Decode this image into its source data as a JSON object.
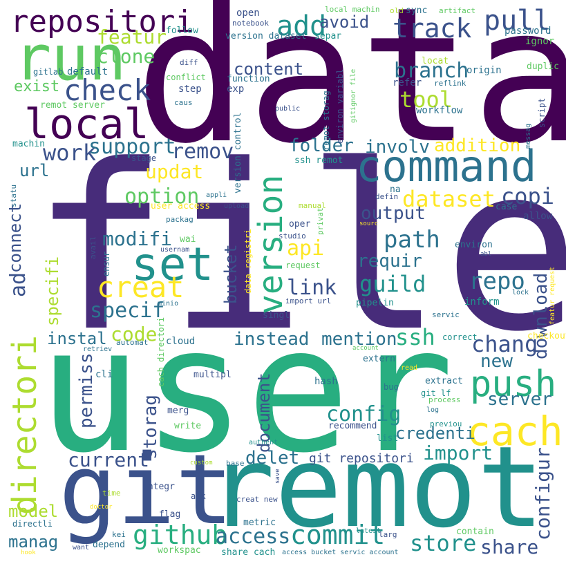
{
  "words": [
    {
      "text": "data",
      "color": "#440154"
    },
    {
      "text": "file",
      "color": "#472c7a"
    },
    {
      "text": "user",
      "color": "#28ae80"
    },
    {
      "text": "remot",
      "color": "#21918c"
    },
    {
      "text": "git",
      "color": "#3b528b"
    },
    {
      "text": "run",
      "color": "#5ec962"
    },
    {
      "text": "repositori",
      "color": "#440154"
    },
    {
      "text": "local",
      "color": "#440154"
    },
    {
      "text": "check",
      "color": "#3b528b"
    },
    {
      "text": "command",
      "color": "#2c728e"
    },
    {
      "text": "push",
      "color": "#28ae80"
    },
    {
      "text": "cach",
      "color": "#fde725"
    },
    {
      "text": "set",
      "color": "#21918c"
    },
    {
      "text": "version",
      "color": "#28ae80"
    },
    {
      "text": "directori",
      "color": "#addc30"
    },
    {
      "text": "creat",
      "color": "#fde725"
    },
    {
      "text": "github",
      "color": "#28ae80"
    },
    {
      "text": "commit",
      "color": "#21918c"
    },
    {
      "text": "access",
      "color": "#2c728e"
    },
    {
      "text": "pull",
      "color": "#3b528b"
    },
    {
      "text": "track",
      "color": "#3b528b"
    },
    {
      "text": "add",
      "color": "#21918c"
    },
    {
      "text": "work",
      "color": "#3b528b"
    },
    {
      "text": "featur",
      "color": "#addc30"
    },
    {
      "text": "clone",
      "color": "#5ec962"
    },
    {
      "text": "support",
      "color": "#2c728e"
    },
    {
      "text": "remov",
      "color": "#3b528b"
    },
    {
      "text": "updat",
      "color": "#fde725"
    },
    {
      "text": "option",
      "color": "#5ec962"
    },
    {
      "text": "modifi",
      "color": "#2c728e"
    },
    {
      "text": "specif",
      "color": "#2c728e"
    },
    {
      "text": "code",
      "color": "#addc30"
    },
    {
      "text": "instal",
      "color": "#2c728e"
    },
    {
      "text": "content",
      "color": "#3b528b"
    },
    {
      "text": "branch",
      "color": "#2c728e"
    },
    {
      "text": "tool",
      "color": "#addc30"
    },
    {
      "text": "folder",
      "color": "#2c728e"
    },
    {
      "text": "involv",
      "color": "#2c728e"
    },
    {
      "text": "addition",
      "color": "#fde725"
    },
    {
      "text": "dataset",
      "color": "#fde725"
    },
    {
      "text": "copi",
      "color": "#3b528b"
    },
    {
      "text": "output",
      "color": "#3b528b"
    },
    {
      "text": "path",
      "color": "#2c728e"
    },
    {
      "text": "requir",
      "color": "#2c728e"
    },
    {
      "text": "repo",
      "color": "#2c728e"
    },
    {
      "text": "guild",
      "color": "#21918c"
    },
    {
      "text": "link",
      "color": "#3b528b"
    },
    {
      "text": "api",
      "color": "#fde725"
    },
    {
      "text": "instead",
      "color": "#2c728e"
    },
    {
      "text": "mention",
      "color": "#2c728e"
    },
    {
      "text": "ssh",
      "color": "#28ae80"
    },
    {
      "text": "chang",
      "color": "#3b528b"
    },
    {
      "text": "new",
      "color": "#2c728e"
    },
    {
      "text": "config",
      "color": "#21918c"
    },
    {
      "text": "credenti",
      "color": "#2c728e"
    },
    {
      "text": "server",
      "color": "#2c728e"
    },
    {
      "text": "import",
      "color": "#21918c"
    },
    {
      "text": "current",
      "color": "#3b528b"
    },
    {
      "text": "delet",
      "color": "#2c728e"
    },
    {
      "text": "git repositori",
      "color": "#3b528b"
    },
    {
      "text": "store",
      "color": "#21918c"
    },
    {
      "text": "share",
      "color": "#3b528b"
    },
    {
      "text": "model",
      "color": "#addc30"
    },
    {
      "text": "manag",
      "color": "#2c728e"
    },
    {
      "text": "download",
      "color": "#3b528b"
    },
    {
      "text": "configur",
      "color": "#3b528b"
    },
    {
      "text": "document",
      "color": "#3b528b"
    },
    {
      "text": "permiss",
      "color": "#3b528b"
    },
    {
      "text": "storag",
      "color": "#3b528b"
    },
    {
      "text": "bucket",
      "color": "#3b528b"
    },
    {
      "text": "connect",
      "color": "#3b528b"
    },
    {
      "text": "ad",
      "color": "#3b528b"
    },
    {
      "text": "specifi",
      "color": "#addc30"
    },
    {
      "text": "url",
      "color": "#2c728e"
    },
    {
      "text": "exist",
      "color": "#5ec962"
    },
    {
      "text": "avoid",
      "color": "#3b528b"
    },
    {
      "text": "open",
      "color": "#3b528b"
    },
    {
      "text": "notebook",
      "color": "#3b528b"
    },
    {
      "text": "version dataset",
      "color": "#2c728e"
    },
    {
      "text": "separ",
      "color": "#21918c"
    },
    {
      "text": "follow",
      "color": "#21918c"
    },
    {
      "text": "password",
      "color": "#2c728e"
    },
    {
      "text": "ignor",
      "color": "#5ec962"
    },
    {
      "text": "origin",
      "color": "#2c728e"
    },
    {
      "text": "local machin",
      "color": "#5ec962"
    },
    {
      "text": "old",
      "color": "#addc30"
    },
    {
      "text": "sync",
      "color": "#2c728e"
    },
    {
      "text": "artifact",
      "color": "#5ec962"
    },
    {
      "text": "locat",
      "color": "#addc30"
    },
    {
      "text": "duplic",
      "color": "#5ec962"
    },
    {
      "text": "refer",
      "color": "#3b528b"
    },
    {
      "text": "reflink",
      "color": "#2c728e"
    },
    {
      "text": "workflow",
      "color": "#2c728e"
    },
    {
      "text": "gitlab",
      "color": "#2c728e"
    },
    {
      "text": "default",
      "color": "#2c728e"
    },
    {
      "text": "diff",
      "color": "#3b528b"
    },
    {
      "text": "conflict",
      "color": "#5ec962"
    },
    {
      "text": "function",
      "color": "#2c728e"
    },
    {
      "text": "step",
      "color": "#3b528b"
    },
    {
      "text": "exp",
      "color": "#3b528b"
    },
    {
      "text": "caus",
      "color": "#2c728e"
    },
    {
      "text": "remot server",
      "color": "#5ec962"
    },
    {
      "text": "public",
      "color": "#3b528b"
    },
    {
      "text": "machin",
      "color": "#21918c"
    },
    {
      "text": "stage",
      "color": "#3b528b"
    },
    {
      "text": "ssh remot",
      "color": "#21918c"
    },
    {
      "text": "na",
      "color": "#2c728e"
    },
    {
      "text": "defin",
      "color": "#3b528b"
    },
    {
      "text": "appli",
      "color": "#2c728e"
    },
    {
      "text": "user access",
      "color": "#fde725"
    },
    {
      "text": "upload",
      "color": "#3b528b"
    },
    {
      "text": "manual",
      "color": "#addc30"
    },
    {
      "text": "case",
      "color": "#2c728e"
    },
    {
      "text": "allow",
      "color": "#3b528b"
    },
    {
      "text": "packag",
      "color": "#2c728e"
    },
    {
      "text": "oper",
      "color": "#3b528b"
    },
    {
      "text": "sourc",
      "color": "#fde725"
    },
    {
      "text": "studio",
      "color": "#3b528b"
    },
    {
      "text": "wai",
      "color": "#5ec962"
    },
    {
      "text": "usernam",
      "color": "#3b528b"
    },
    {
      "text": "environ",
      "color": "#2c728e"
    },
    {
      "text": "abl",
      "color": "#3b528b"
    },
    {
      "text": "request",
      "color": "#5ec962"
    },
    {
      "text": "lock",
      "color": "#2c728e"
    },
    {
      "text": "minio",
      "color": "#2c728e"
    },
    {
      "text": "import url",
      "color": "#3b528b"
    },
    {
      "text": "inform",
      "color": "#21918c"
    },
    {
      "text": "pipelin",
      "color": "#21918c"
    },
    {
      "text": "singl",
      "color": "#3b528b"
    },
    {
      "text": "servic",
      "color": "#2c728e"
    },
    {
      "text": "automat",
      "color": "#2c728e"
    },
    {
      "text": "cloud",
      "color": "#2c728e"
    },
    {
      "text": "retriev",
      "color": "#2c728e"
    },
    {
      "text": "correct",
      "color": "#21918c"
    },
    {
      "text": "checkout",
      "color": "#fde725"
    },
    {
      "text": "account",
      "color": "#5ec962"
    },
    {
      "text": "extern",
      "color": "#2c728e"
    },
    {
      "text": "read",
      "color": "#fde725"
    },
    {
      "text": "cli",
      "color": "#2c728e"
    },
    {
      "text": "multipl",
      "color": "#3b528b"
    },
    {
      "text": "hash",
      "color": "#2c728e"
    },
    {
      "text": "bug",
      "color": "#2c728e"
    },
    {
      "text": "extract",
      "color": "#2c728e"
    },
    {
      "text": "git lf",
      "color": "#21918c"
    },
    {
      "text": "process",
      "color": "#5ec962"
    },
    {
      "text": "log",
      "color": "#2c728e"
    },
    {
      "text": "previou",
      "color": "#21918c"
    },
    {
      "text": "merg",
      "color": "#3b528b"
    },
    {
      "text": "write",
      "color": "#5ec962"
    },
    {
      "text": "recommend",
      "color": "#3b528b"
    },
    {
      "text": "authent",
      "color": "#21918c"
    },
    {
      "text": "list",
      "color": "#21918c"
    },
    {
      "text": "base",
      "color": "#2c728e"
    },
    {
      "text": "custom",
      "color": "#addc30"
    },
    {
      "text": "integr",
      "color": "#3b528b"
    },
    {
      "text": "ask",
      "color": "#3b528b"
    },
    {
      "text": "creat new",
      "color": "#3b528b"
    },
    {
      "text": "time",
      "color": "#addc30"
    },
    {
      "text": "flag",
      "color": "#3b528b"
    },
    {
      "text": "doctor",
      "color": "#fde725"
    },
    {
      "text": "metric",
      "color": "#2c728e"
    },
    {
      "text": "directli",
      "color": "#2c728e"
    },
    {
      "text": "kei",
      "color": "#2c728e"
    },
    {
      "text": "latest",
      "color": "#21918c"
    },
    {
      "text": "larg",
      "color": "#3b528b"
    },
    {
      "text": "contain",
      "color": "#5ec962"
    },
    {
      "text": "want",
      "color": "#3b528b"
    },
    {
      "text": "depend",
      "color": "#2c728e"
    },
    {
      "text": "workspac",
      "color": "#5ec962"
    },
    {
      "text": "share cach",
      "color": "#21918c"
    },
    {
      "text": "access bucket servic account",
      "color": "#2c728e"
    },
    {
      "text": "hook",
      "color": "#fde725"
    },
    {
      "text": "remot storag",
      "color": "#2c728e"
    },
    {
      "text": "environ variabl",
      "color": "#3b528b"
    },
    {
      "text": "gitignor file",
      "color": "#5ec962"
    },
    {
      "text": "version control",
      "color": "#2c728e"
    },
    {
      "text": "data registri",
      "color": "#fde725"
    },
    {
      "text": "privat",
      "color": "#5ec962"
    },
    {
      "text": "avail",
      "color": "#3b528b"
    },
    {
      "text": "ensur",
      "color": "#2c728e"
    },
    {
      "text": "cach directori",
      "color": "#5ec962"
    },
    {
      "text": "messag",
      "color": "#2c728e"
    },
    {
      "text": "script",
      "color": "#3b528b"
    },
    {
      "text": "statu",
      "color": "#2c728e"
    },
    {
      "text": "save",
      "color": "#3b528b"
    },
    {
      "text": "featur request",
      "color": "#fde725"
    }
  ]
}
